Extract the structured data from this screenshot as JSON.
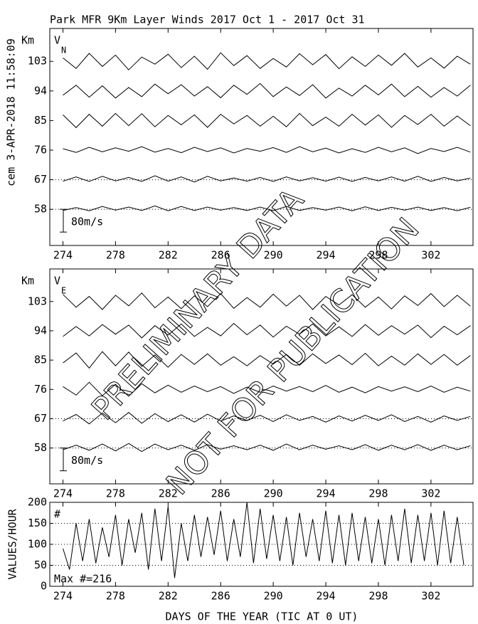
{
  "side_label": "cem 3-APR-2018 11:58:09",
  "watermark": [
    "PRELIMINARY DATA",
    "NOT FOR PUBLICATION"
  ],
  "chart_data": [
    {
      "type": "line",
      "title": "Park MFR 9Km Layer Winds 2017 Oct  1 - 2017 Oct 31",
      "ylabel": "Km",
      "panel_label": "V",
      "panel_sub": "N",
      "scale_bar": {
        "value": 80,
        "label": "80m/s"
      },
      "xlim": [
        273,
        305.2
      ],
      "xticks": [
        274,
        278,
        282,
        286,
        290,
        294,
        298,
        302
      ],
      "ylim": [
        47,
        113
      ],
      "yticks": [
        103,
        94,
        85,
        76,
        67,
        58
      ],
      "x": [
        274,
        275,
        276,
        277,
        278,
        279,
        280,
        281,
        282,
        283,
        284,
        285,
        286,
        287,
        288,
        289,
        290,
        291,
        292,
        293,
        294,
        295,
        296,
        297,
        298,
        299,
        300,
        301,
        302,
        303,
        304,
        305
      ],
      "series": [
        {
          "color": "#000",
          "values": [
            12,
            -25,
            28,
            -18,
            22,
            -30,
            15,
            -10,
            25,
            -22,
            18,
            -28,
            30,
            -15,
            20,
            -25,
            10,
            -20,
            27,
            -12,
            24,
            -26,
            16,
            -18,
            22,
            -14,
            28,
            -20,
            12,
            -24,
            18,
            -10
          ]
        },
        {
          "color": "#000",
          "values": [
            -15,
            20,
            -22,
            18,
            -25,
            12,
            -20,
            24,
            -10,
            22,
            -18,
            15,
            -24,
            20,
            -12,
            26,
            -20,
            14,
            -16,
            22,
            -25,
            10,
            -18,
            20,
            -14,
            24,
            -20,
            16,
            -22,
            12,
            -18,
            20
          ]
        },
        {
          "color": "#000",
          "values": [
            20,
            -25,
            22,
            -20,
            25,
            -18,
            24,
            -22,
            18,
            -15,
            20,
            -24,
            22,
            -12,
            18,
            -20,
            15,
            -22,
            25,
            -18,
            12,
            -20,
            22,
            -16,
            20,
            -24,
            18,
            -14,
            22,
            -20,
            16,
            -18
          ]
        },
        {
          "color": "#000",
          "values": [
            5,
            -8,
            10,
            -6,
            8,
            -4,
            12,
            -7,
            6,
            -9,
            10,
            -5,
            8,
            -10,
            6,
            -4,
            9,
            -8,
            12,
            -6,
            7,
            -10,
            5,
            -8,
            10,
            -6,
            8,
            -12,
            6,
            -5,
            10,
            -7
          ]
        },
        {
          "color": "#000",
          "dotted_baseline": true,
          "values": [
            -5,
            10,
            -6,
            12,
            -4,
            8,
            -6,
            14,
            -5,
            10,
            -8,
            12,
            -4,
            6,
            -5,
            8,
            -6,
            10,
            -4,
            7,
            -5,
            9,
            -6,
            8,
            -4,
            10,
            -5,
            12,
            -6,
            8,
            -4,
            6
          ]
        },
        {
          "color": "#000",
          "dotted_baseline": true,
          "values": [
            -4,
            6,
            -5,
            10,
            -3,
            8,
            -4,
            12,
            -5,
            10,
            -4,
            8,
            -3,
            6,
            -4,
            8,
            -5,
            10,
            -4,
            6,
            -3,
            8,
            -5,
            9,
            -4,
            7,
            -3,
            8,
            -4,
            6,
            -5,
            7
          ]
        }
      ]
    },
    {
      "type": "line",
      "ylabel": "Km",
      "panel_label": "V",
      "panel_sub": "E",
      "scale_bar": {
        "value": 80,
        "label": "80m/s"
      },
      "xlim": [
        273,
        305.2
      ],
      "xticks": [
        274,
        278,
        282,
        286,
        290,
        294,
        298,
        302
      ],
      "ylim": [
        47,
        113
      ],
      "yticks": [
        103,
        94,
        85,
        76,
        67,
        58
      ],
      "x": [
        274,
        275,
        276,
        277,
        278,
        279,
        280,
        281,
        282,
        283,
        284,
        285,
        286,
        287,
        288,
        289,
        290,
        291,
        292,
        293,
        294,
        295,
        296,
        297,
        298,
        299,
        300,
        301,
        302,
        303,
        304,
        305
      ],
      "series": [
        {
          "color": "#000",
          "values": [
            25,
            -20,
            18,
            -28,
            22,
            -15,
            30,
            -22,
            16,
            -25,
            20,
            -18,
            28,
            -24,
            14,
            -20,
            26,
            -16,
            22,
            -28,
            18,
            -12,
            24,
            -20,
            16,
            -26,
            20,
            -14,
            28,
            -18,
            22,
            -16
          ]
        },
        {
          "color": "#000",
          "values": [
            -20,
            15,
            -18,
            22,
            -12,
            20,
            -25,
            18,
            -15,
            24,
            -20,
            12,
            -18,
            26,
            -14,
            20,
            -22,
            16,
            -12,
            24,
            -18,
            14,
            -20,
            22,
            -16,
            18,
            -12,
            20,
            -24,
            16,
            -14,
            18
          ]
        },
        {
          "color": "#000",
          "values": [
            -10,
            25,
            -28,
            30,
            -20,
            28,
            -22,
            18,
            -25,
            20,
            -15,
            22,
            -18,
            12,
            -20,
            16,
            -14,
            20,
            -18,
            22,
            -12,
            18,
            -16,
            24,
            -20,
            14,
            -18,
            22,
            -15,
            20,
            -18,
            16
          ]
        },
        {
          "color": "#000",
          "values": [
            10,
            -20,
            25,
            -22,
            18,
            -24,
            20,
            -12,
            15,
            -10,
            12,
            -8,
            10,
            -14,
            8,
            -10,
            12,
            -6,
            10,
            -8,
            14,
            -10,
            8,
            -12,
            10,
            -6,
            9,
            -8,
            12,
            -10,
            8,
            -6
          ]
        },
        {
          "color": "#000",
          "dotted_baseline": true,
          "values": [
            -8,
            15,
            -18,
            20,
            -14,
            22,
            -16,
            18,
            -10,
            14,
            -12,
            16,
            -8,
            10,
            -6,
            12,
            -10,
            14,
            -6,
            8,
            -12,
            10,
            -8,
            12,
            -6,
            14,
            -10,
            8,
            -12,
            10,
            -6,
            8
          ]
        },
        {
          "color": "#000",
          "dotted_baseline": true,
          "values": [
            -6,
            10,
            -8,
            14,
            -10,
            16,
            -12,
            14,
            -6,
            10,
            -8,
            12,
            -4,
            8,
            -6,
            10,
            -8,
            14,
            -6,
            10,
            -4,
            8,
            -6,
            12,
            -8,
            10,
            -6,
            12,
            -8,
            10,
            -6,
            8
          ]
        }
      ]
    },
    {
      "type": "line",
      "ylabel": "VALUES/HOUR",
      "panel_label": "#",
      "annotation": "Max #=216",
      "xlabel": "DAYS OF THE YEAR (TIC AT 0 UT)",
      "xlim": [
        273,
        305.2
      ],
      "xticks": [
        274,
        278,
        282,
        286,
        290,
        294,
        298,
        302
      ],
      "ylim": [
        0,
        200
      ],
      "yticks": [
        0,
        50,
        100,
        150,
        200
      ],
      "grid": true,
      "x": [
        274,
        274.5,
        275,
        275.5,
        276,
        276.5,
        277,
        277.5,
        278,
        278.5,
        279,
        279.5,
        280,
        280.5,
        281,
        281.5,
        282,
        282.5,
        283,
        283.5,
        284,
        284.5,
        285,
        285.5,
        286,
        286.5,
        287,
        287.5,
        288,
        288.5,
        289,
        289.5,
        290,
        290.5,
        291,
        291.5,
        292,
        292.5,
        293,
        293.5,
        294,
        294.5,
        295,
        295.5,
        296,
        296.5,
        297,
        297.5,
        298,
        298.5,
        299,
        299.5,
        300,
        300.5,
        301,
        301.5,
        302,
        302.5,
        303,
        303.5,
        304,
        304.5
      ],
      "series": [
        {
          "color": "#000",
          "values": [
            90,
            40,
            150,
            60,
            160,
            55,
            140,
            70,
            170,
            50,
            160,
            80,
            175,
            40,
            185,
            60,
            190,
            20,
            150,
            60,
            170,
            70,
            165,
            75,
            180,
            60,
            160,
            70,
            200,
            55,
            185,
            65,
            170,
            60,
            165,
            50,
            175,
            70,
            160,
            60,
            180,
            55,
            170,
            50,
            175,
            60,
            165,
            55,
            160,
            50,
            170,
            60,
            185,
            55,
            170,
            60,
            175,
            50,
            180,
            55,
            165,
            50
          ]
        }
      ]
    }
  ]
}
